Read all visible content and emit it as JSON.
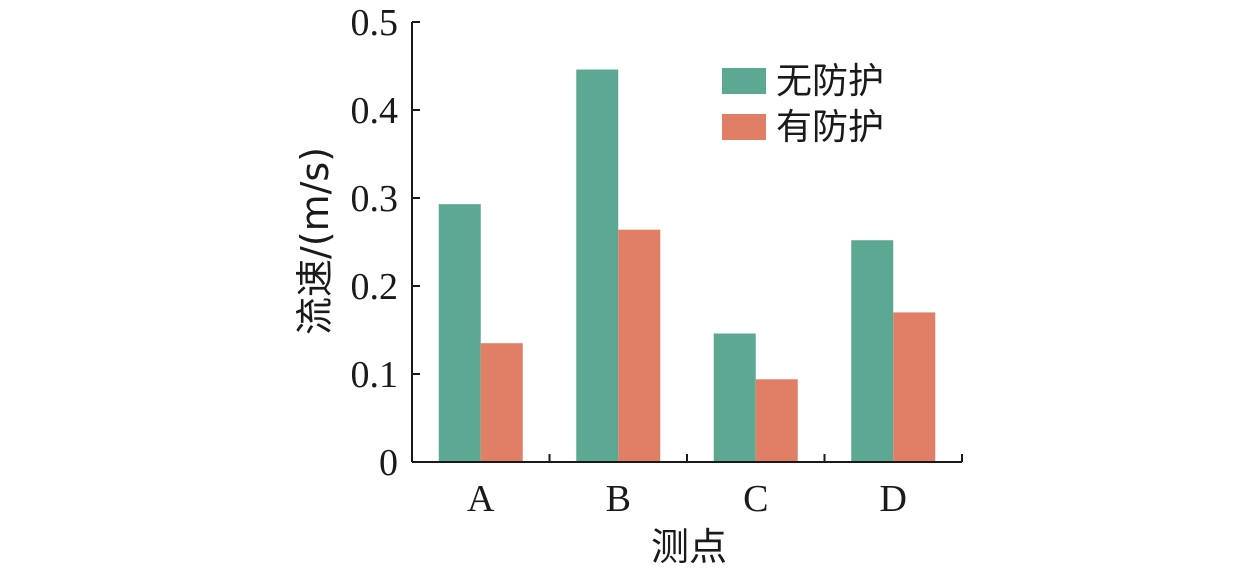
{
  "chart_data": {
    "type": "bar",
    "title": "",
    "xlabel": "测点",
    "ylabel": "流速/(m/s)",
    "categories": [
      "A",
      "B",
      "C",
      "D"
    ],
    "ylim": [
      0,
      0.5
    ],
    "yticks": [
      "0",
      "0.1",
      "0.2",
      "0.3",
      "0.4",
      "0.5"
    ],
    "grid": false,
    "legend_position": "top-right",
    "series": [
      {
        "name": "无防护",
        "color": "#5da892",
        "values": [
          0.293,
          0.446,
          0.146,
          0.252
        ]
      },
      {
        "name": "有防护",
        "color": "#e07f66",
        "values": [
          0.135,
          0.264,
          0.094,
          0.17
        ]
      }
    ]
  }
}
